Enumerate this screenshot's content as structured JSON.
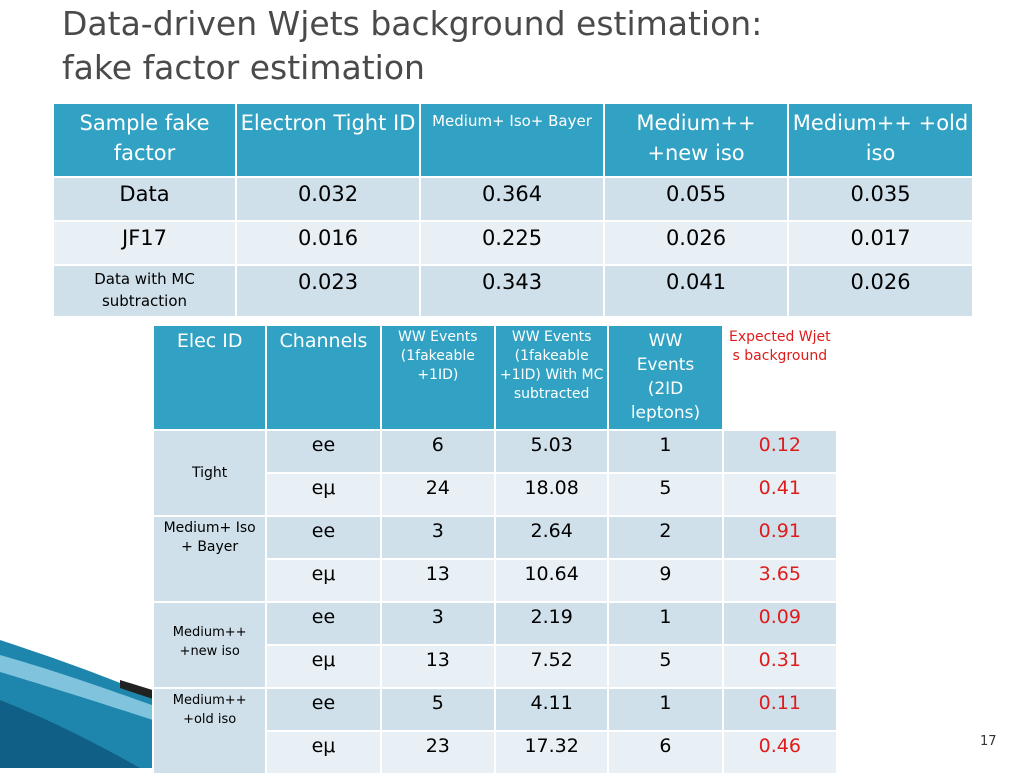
{
  "title": "Data-driven Wjets background estimation:\nfake factor estimation",
  "table1": {
    "headers": [
      "Sample fake factor",
      "Electron Tight ID",
      "Medium+ Iso+ Bayer",
      "Medium++ +new iso",
      "Medium++ +old iso"
    ],
    "rows": [
      [
        "Data",
        "0.032",
        "0.364",
        "0.055",
        "0.035"
      ],
      [
        "JF17",
        "0.016",
        "0.225",
        "0.026",
        "0.017"
      ],
      [
        "Data with MC subtraction",
        "0.023",
        "0.343",
        "0.041",
        "0.026"
      ]
    ]
  },
  "table2": {
    "headers": [
      "Elec ID",
      "Channels",
      "WW Events (1fakeable +1ID)",
      "WW Events (1fakeable +1ID) With MC subtracted",
      "WW Events (2ID leptons)",
      "Expected Wjets background"
    ],
    "groups": [
      "Tight",
      "Medium+ Iso + Bayer",
      "Medium++ +new iso",
      "Medium++ +old iso"
    ],
    "rows": [
      [
        "ee",
        "6",
        "5.03",
        "1",
        "0.12"
      ],
      [
        "eμ",
        "24",
        "18.08",
        "5",
        "0.41"
      ],
      [
        "ee",
        "3",
        "2.64",
        "2",
        "0.91"
      ],
      [
        "eμ",
        "13",
        "10.64",
        "9",
        "3.65"
      ],
      [
        "ee",
        "3",
        "2.19",
        "1",
        "0.09"
      ],
      [
        "eμ",
        "13",
        "7.52",
        "5",
        "0.31"
      ],
      [
        "ee",
        "5",
        "4.11",
        "1",
        "0.11"
      ],
      [
        "eμ",
        "23",
        "17.32",
        "6",
        "0.46"
      ]
    ]
  },
  "page_number": "17",
  "colors": {
    "header": "#31a2c3",
    "row_dark": "#cfe0ea",
    "row_light": "#e9f0f5",
    "highlight": "#e01b1b"
  }
}
